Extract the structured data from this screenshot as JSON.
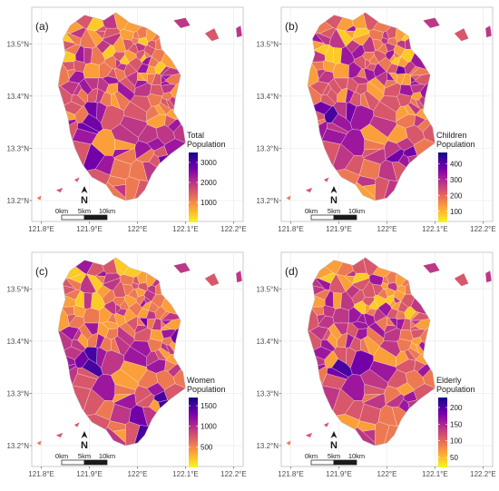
{
  "axes": {
    "x_ticks": [
      "121.8°E",
      "121.9°E",
      "122°E",
      "122.1°E",
      "122.2°E"
    ],
    "y_ticks": [
      "13.5°N",
      "13.4°N",
      "13.3°N",
      "13.2°N"
    ]
  },
  "scale_bar": {
    "labels": [
      "0km",
      "5km",
      "10km"
    ]
  },
  "north_arrow": {
    "label": "N"
  },
  "colors": {
    "palette": [
      "#0d0887",
      "#46039f",
      "#7201a8",
      "#9c179e",
      "#bd3786",
      "#d8576b",
      "#ed7953",
      "#fb9f3a",
      "#fdca26",
      "#f0f921"
    ],
    "grid": "#ebebeb",
    "panel_border": "#bfbfbf"
  },
  "panels": [
    {
      "id": "a",
      "label": "(a)",
      "legend_title_1": "Total",
      "legend_title_2": "Population",
      "legend_ticks": [
        "3000",
        "2000",
        "1000"
      ],
      "legend_values": [
        3000,
        2000,
        1000
      ],
      "legend_range": [
        0,
        3500
      ],
      "seed": 11
    },
    {
      "id": "b",
      "label": "(b)",
      "legend_title_1": "Children",
      "legend_title_2": "Population",
      "legend_ticks": [
        "400",
        "300",
        "200",
        "100"
      ],
      "legend_values": [
        400,
        300,
        200,
        100
      ],
      "legend_range": [
        30,
        470
      ],
      "seed": 23
    },
    {
      "id": "c",
      "label": "(c)",
      "legend_title_1": "Women",
      "legend_title_2": "Population",
      "legend_ticks": [
        "1500",
        "1000",
        "500"
      ],
      "legend_values": [
        1500,
        1000,
        500
      ],
      "legend_range": [
        0,
        1700
      ],
      "seed": 37
    },
    {
      "id": "d",
      "label": "(d)",
      "legend_title_1": "Elderly",
      "legend_title_2": "Population",
      "legend_ticks": [
        "200",
        "150",
        "100",
        "50"
      ],
      "legend_values": [
        200,
        150,
        100,
        50
      ],
      "legend_range": [
        20,
        230
      ],
      "seed": 53
    }
  ]
}
